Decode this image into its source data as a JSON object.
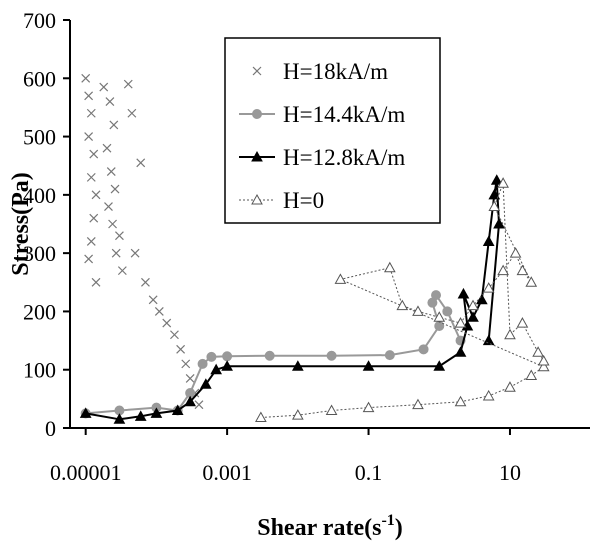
{
  "chart_data": {
    "type": "scatter",
    "xlabel": "Shear rate(s",
    "xlabel_sup": "-1",
    "xlabel_close": ")",
    "ylabel": "Stress(Pa)",
    "xscale": "log",
    "xlim": [
      6e-06,
      60
    ],
    "ylim": [
      0,
      700
    ],
    "x_tick_values": [
      1e-05,
      0.001,
      0.1,
      10
    ],
    "x_tick_labels": [
      "0.00001",
      "0.001",
      "0.1",
      "10"
    ],
    "y_tick_values": [
      0,
      100,
      200,
      300,
      400,
      500,
      600,
      700
    ],
    "y_tick_labels": [
      "0",
      "100",
      "200",
      "300",
      "400",
      "500",
      "600",
      "700"
    ],
    "grid": false,
    "legend_position": "top-center",
    "series": [
      {
        "name": "H=18kA/m",
        "marker": "x",
        "color": "#777777",
        "line": "none",
        "points": [
          [
            1e-05,
            600
          ],
          [
            1.1e-05,
            570
          ],
          [
            1.2e-05,
            540
          ],
          [
            1.1e-05,
            500
          ],
          [
            1.3e-05,
            470
          ],
          [
            1.2e-05,
            430
          ],
          [
            1.4e-05,
            400
          ],
          [
            1.3e-05,
            360
          ],
          [
            1.2e-05,
            320
          ],
          [
            1.1e-05,
            290
          ],
          [
            1.4e-05,
            250
          ],
          [
            1.8e-05,
            585
          ],
          [
            2.2e-05,
            560
          ],
          [
            2.5e-05,
            520
          ],
          [
            2e-05,
            480
          ],
          [
            2.3e-05,
            440
          ],
          [
            2.6e-05,
            410
          ],
          [
            2.1e-05,
            380
          ],
          [
            2.4e-05,
            350
          ],
          [
            3e-05,
            330
          ],
          [
            2.7e-05,
            300
          ],
          [
            3.3e-05,
            270
          ],
          [
            4e-05,
            590
          ],
          [
            4.5e-05,
            540
          ],
          [
            6e-05,
            455
          ],
          [
            5e-05,
            300
          ],
          [
            7e-05,
            250
          ],
          [
            9e-05,
            220
          ],
          [
            0.00011,
            200
          ],
          [
            0.00014,
            180
          ],
          [
            0.00018,
            160
          ],
          [
            0.00022,
            135
          ],
          [
            0.00026,
            110
          ],
          [
            0.0003,
            85
          ],
          [
            0.00035,
            60
          ],
          [
            0.0004,
            40
          ]
        ]
      },
      {
        "name": "H=14.4kA/m",
        "marker": "circle",
        "color": "#999999",
        "line": "solid",
        "points": [
          [
            1e-05,
            25
          ],
          [
            3e-05,
            30
          ],
          [
            0.0001,
            35
          ],
          [
            0.0002,
            30
          ],
          [
            0.0003,
            60
          ],
          [
            0.00045,
            110
          ],
          [
            0.0006,
            122
          ],
          [
            0.001,
            123
          ],
          [
            0.004,
            124
          ],
          [
            0.03,
            124
          ],
          [
            0.2,
            125
          ],
          [
            0.6,
            135
          ],
          [
            1.0,
            175
          ],
          [
            0.8,
            215
          ],
          [
            0.9,
            228
          ],
          [
            1.3,
            200
          ],
          [
            2.0,
            150
          ]
        ]
      },
      {
        "name": "H=12.8kA/m",
        "marker": "triangle-filled",
        "color": "#000000",
        "line": "solid",
        "points": [
          [
            1e-05,
            25
          ],
          [
            3e-05,
            15
          ],
          [
            6e-05,
            20
          ],
          [
            0.0001,
            25
          ],
          [
            0.0002,
            30
          ],
          [
            0.0003,
            45
          ],
          [
            0.0005,
            75
          ],
          [
            0.0007,
            100
          ],
          [
            0.001,
            106
          ],
          [
            0.01,
            106
          ],
          [
            0.1,
            106
          ],
          [
            1.0,
            106
          ],
          [
            2.0,
            130
          ],
          [
            2.5,
            175
          ],
          [
            2.2,
            230
          ],
          [
            3.0,
            190
          ],
          [
            4.0,
            220
          ],
          [
            5.0,
            320
          ],
          [
            6.0,
            400
          ],
          [
            6.5,
            425
          ],
          [
            7.0,
            350
          ],
          [
            5.0,
            150
          ]
        ]
      },
      {
        "name": "H=0",
        "marker": "triangle-open",
        "color": "#555555",
        "line": "dotted",
        "points": [
          [
            0.003,
            18
          ],
          [
            0.01,
            22
          ],
          [
            0.03,
            30
          ],
          [
            0.1,
            35
          ],
          [
            0.5,
            40
          ],
          [
            2,
            45
          ],
          [
            5,
            55
          ],
          [
            10,
            70
          ],
          [
            20,
            90
          ],
          [
            30,
            105
          ],
          [
            0.04,
            255
          ],
          [
            0.2,
            275
          ],
          [
            0.3,
            210
          ],
          [
            0.5,
            200
          ],
          [
            1.0,
            190
          ],
          [
            2.0,
            180
          ],
          [
            3,
            210
          ],
          [
            5,
            240
          ],
          [
            8,
            270
          ],
          [
            12,
            300
          ],
          [
            15,
            270
          ],
          [
            20,
            250
          ],
          [
            6,
            380
          ],
          [
            8,
            420
          ],
          [
            10,
            160
          ],
          [
            15,
            180
          ],
          [
            25,
            130
          ],
          [
            30,
            115
          ]
        ]
      }
    ]
  }
}
